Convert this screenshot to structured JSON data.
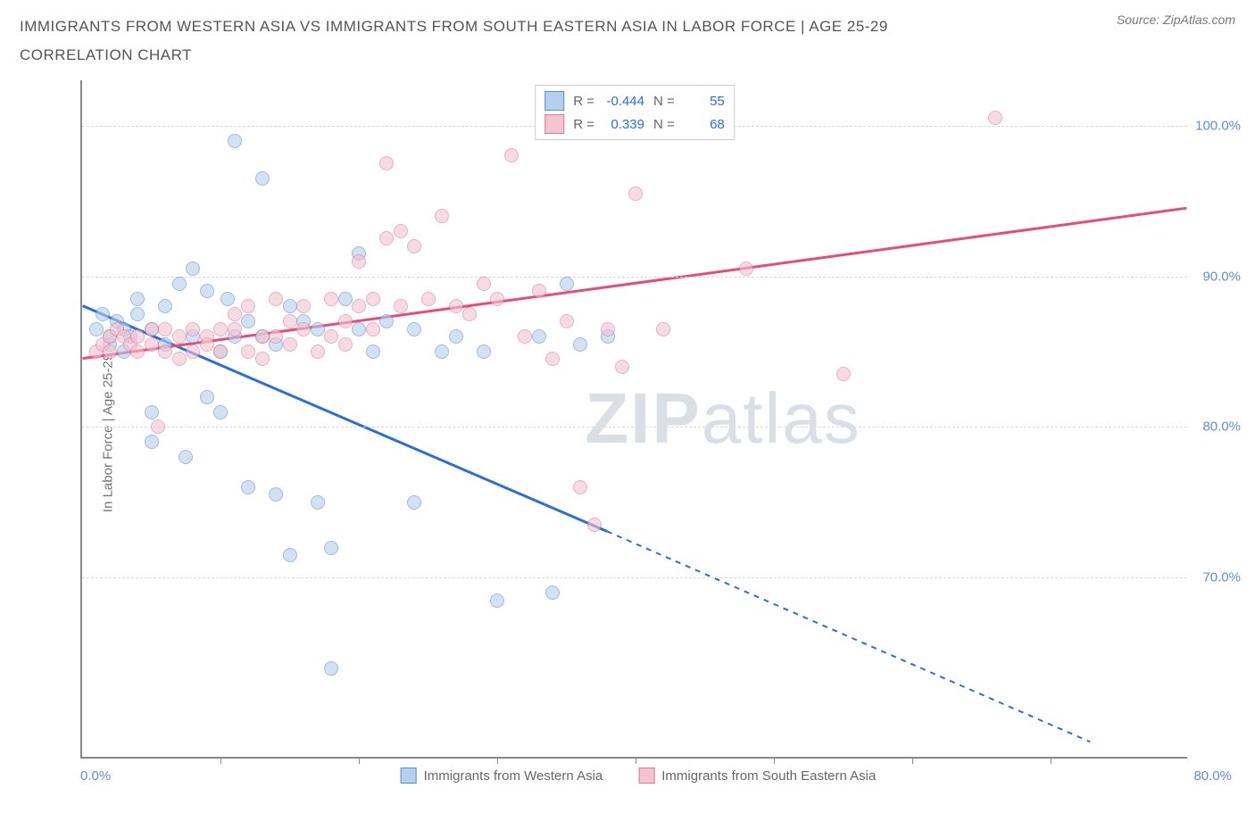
{
  "title": "IMMIGRANTS FROM WESTERN ASIA VS IMMIGRANTS FROM SOUTH EASTERN ASIA IN LABOR FORCE | AGE 25-29 CORRELATION CHART",
  "source": "Source: ZipAtlas.com",
  "watermark_a": "ZIP",
  "watermark_b": "atlas",
  "ylabel": "In Labor Force | Age 25-29",
  "chart": {
    "type": "scatter",
    "background_color": "#ffffff",
    "grid_color": "#d8d8d8",
    "axis_color": "#888888",
    "tick_label_color": "#5b8fd6",
    "xlim": [
      0,
      80
    ],
    "ylim": [
      58,
      103
    ],
    "yticks": [
      70,
      80,
      90,
      100
    ],
    "ytick_labels": [
      "70.0%",
      "80.0%",
      "90.0%",
      "100.0%"
    ],
    "xticks": [
      10,
      20,
      30,
      40,
      50,
      60,
      70
    ],
    "xlabel_min": "0.0%",
    "xlabel_max": "80.0%",
    "marker_radius": 8,
    "marker_opacity": 0.6
  },
  "series": [
    {
      "name": "Immigrants from Western Asia",
      "fill": "#b5cfec",
      "stroke": "#5a8fce",
      "line_color": "#2a6fd6",
      "r": "-0.444",
      "n": "55",
      "trend": {
        "x1": 0,
        "y1": 88.0,
        "x2": 38,
        "y2": 73.0,
        "x2_ext": 73,
        "y2_ext": 59.0,
        "solid_until": 38
      },
      "points": [
        [
          1,
          86.5
        ],
        [
          1.5,
          87.5
        ],
        [
          2,
          85.5
        ],
        [
          2,
          86
        ],
        [
          2.5,
          87
        ],
        [
          3,
          86.5
        ],
        [
          3,
          85
        ],
        [
          3.5,
          86
        ],
        [
          4,
          87.5
        ],
        [
          4,
          88.5
        ],
        [
          5,
          86.5
        ],
        [
          5,
          81
        ],
        [
          5,
          79
        ],
        [
          6,
          88
        ],
        [
          6,
          85.5
        ],
        [
          7,
          89.5
        ],
        [
          7.5,
          78
        ],
        [
          8,
          90.5
        ],
        [
          8,
          86
        ],
        [
          9,
          89
        ],
        [
          9,
          82
        ],
        [
          10,
          85
        ],
        [
          10,
          81
        ],
        [
          10.5,
          88.5
        ],
        [
          11,
          86
        ],
        [
          11,
          99
        ],
        [
          12,
          87
        ],
        [
          12,
          76
        ],
        [
          13,
          86
        ],
        [
          13,
          96.5
        ],
        [
          14,
          85.5
        ],
        [
          14,
          75.5
        ],
        [
          15,
          88
        ],
        [
          15,
          71.5
        ],
        [
          16,
          87
        ],
        [
          17,
          86.5
        ],
        [
          17,
          75
        ],
        [
          18,
          64
        ],
        [
          18,
          72
        ],
        [
          19,
          88.5
        ],
        [
          20,
          86.5
        ],
        [
          20,
          91.5
        ],
        [
          21,
          85
        ],
        [
          22,
          87
        ],
        [
          24,
          86.5
        ],
        [
          24,
          75
        ],
        [
          26,
          85
        ],
        [
          27,
          86
        ],
        [
          29,
          85
        ],
        [
          30,
          68.5
        ],
        [
          33,
          86
        ],
        [
          34,
          69
        ],
        [
          35,
          89.5
        ],
        [
          36,
          85.5
        ],
        [
          38,
          86
        ]
      ]
    },
    {
      "name": "Immigrants from South Eastern Asia",
      "fill": "#f3c4d1",
      "stroke": "#e37795",
      "line_color": "#e64c7a",
      "r": "0.339",
      "n": "68",
      "trend": {
        "x1": 0,
        "y1": 84.5,
        "x2": 80,
        "y2": 94.5,
        "solid_until": 80
      },
      "points": [
        [
          1,
          85
        ],
        [
          1.5,
          85.5
        ],
        [
          2,
          86
        ],
        [
          2,
          85
        ],
        [
          2.5,
          86.5
        ],
        [
          3,
          86
        ],
        [
          3.5,
          85.5
        ],
        [
          4,
          86
        ],
        [
          4,
          85
        ],
        [
          5,
          86.5
        ],
        [
          5,
          85.5
        ],
        [
          5.5,
          80
        ],
        [
          6,
          86.5
        ],
        [
          6,
          85
        ],
        [
          7,
          86
        ],
        [
          7,
          84.5
        ],
        [
          8,
          86.5
        ],
        [
          8,
          85
        ],
        [
          9,
          86
        ],
        [
          9,
          85.5
        ],
        [
          10,
          86.5
        ],
        [
          10,
          85
        ],
        [
          11,
          86.5
        ],
        [
          11,
          87.5
        ],
        [
          12,
          88
        ],
        [
          12,
          85
        ],
        [
          13,
          86
        ],
        [
          13,
          84.5
        ],
        [
          14,
          88.5
        ],
        [
          14,
          86
        ],
        [
          15,
          87
        ],
        [
          15,
          85.5
        ],
        [
          16,
          88
        ],
        [
          16,
          86.5
        ],
        [
          17,
          85
        ],
        [
          18,
          88.5
        ],
        [
          18,
          86
        ],
        [
          19,
          87
        ],
        [
          19,
          85.5
        ],
        [
          20,
          88
        ],
        [
          20,
          91
        ],
        [
          21,
          88.5
        ],
        [
          21,
          86.5
        ],
        [
          22,
          97.5
        ],
        [
          22,
          92.5
        ],
        [
          23,
          93
        ],
        [
          23,
          88
        ],
        [
          24,
          92
        ],
        [
          25,
          88.5
        ],
        [
          26,
          94
        ],
        [
          27,
          88
        ],
        [
          28,
          87.5
        ],
        [
          29,
          89.5
        ],
        [
          30,
          88.5
        ],
        [
          31,
          98
        ],
        [
          32,
          86
        ],
        [
          33,
          89
        ],
        [
          34,
          84.5
        ],
        [
          35,
          87
        ],
        [
          36,
          76
        ],
        [
          37,
          73.5
        ],
        [
          38,
          86.5
        ],
        [
          39,
          84
        ],
        [
          40,
          95.5
        ],
        [
          42,
          86.5
        ],
        [
          48,
          90.5
        ],
        [
          55,
          83.5
        ],
        [
          66,
          100.5
        ]
      ]
    }
  ],
  "legend_labels": {
    "r_label": "R =",
    "n_label": "N ="
  }
}
